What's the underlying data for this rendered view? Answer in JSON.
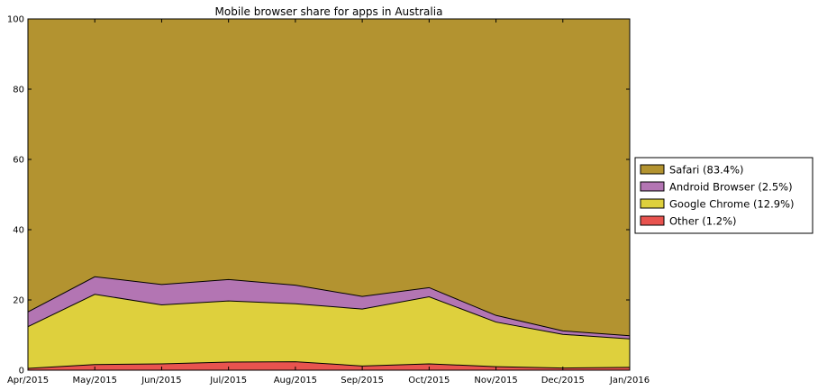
{
  "chart_data": {
    "type": "area",
    "stacked": true,
    "title": "Mobile browser share for apps in Australia",
    "xlabel": "",
    "ylabel": "",
    "x": [
      "Apr/2015",
      "May/2015",
      "Jun/2015",
      "Jul/2015",
      "Aug/2015",
      "Sep/2015",
      "Oct/2015",
      "Nov/2015",
      "Dec/2015",
      "Jan/2016"
    ],
    "ylim": [
      0,
      100
    ],
    "yticks": [
      0,
      20,
      40,
      60,
      80,
      100
    ],
    "grid": false,
    "legend_position": "right",
    "series": [
      {
        "name": "Other (1.2%)",
        "color": "#e8534f",
        "values": [
          0.5,
          1.6,
          1.8,
          2.3,
          2.4,
          1.2,
          1.8,
          1.0,
          0.6,
          0.8
        ]
      },
      {
        "name": "Google Chrome (12.9%)",
        "color": "#ded03d",
        "values": [
          11.9,
          20.0,
          16.8,
          17.4,
          16.5,
          16.2,
          19.1,
          12.7,
          9.6,
          8.1
        ]
      },
      {
        "name": "Android Browser (2.5%)",
        "color": "#b375b3",
        "values": [
          4.2,
          5.0,
          5.8,
          6.1,
          5.3,
          3.6,
          2.6,
          1.9,
          1.0,
          0.9
        ]
      },
      {
        "name": "Safari (83.4%)",
        "color": "#b39330",
        "values": [
          83.4,
          73.4,
          75.6,
          74.2,
          75.8,
          79.0,
          76.5,
          84.4,
          88.8,
          90.2
        ]
      }
    ],
    "legend_order": [
      "Safari (83.4%)",
      "Android Browser (2.5%)",
      "Google Chrome (12.9%)",
      "Other (1.2%)"
    ]
  }
}
